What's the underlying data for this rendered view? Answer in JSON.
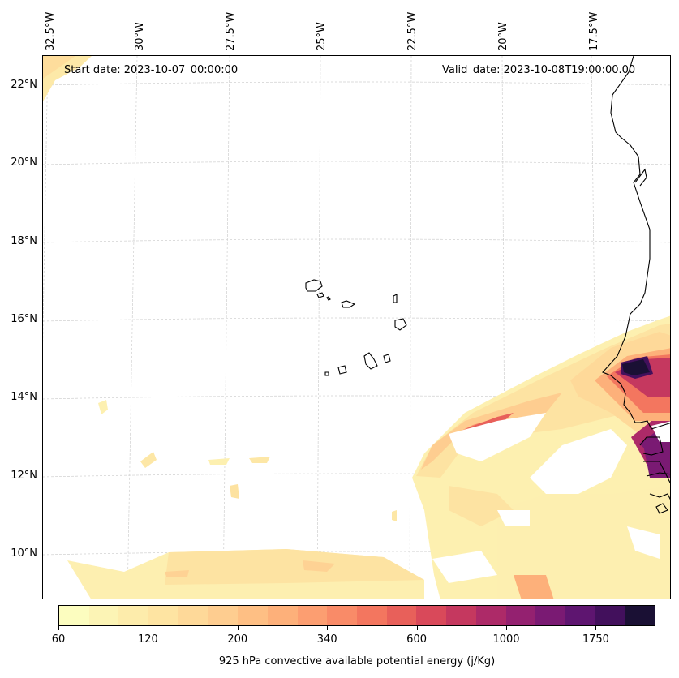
{
  "map": {
    "start_date": "Start date: 2023-10-07_00:00:00",
    "valid_date": "Valid_date: 2023-10-08T19:00:00.00",
    "lon_labels": [
      "32.5°W",
      "30°W",
      "27.5°W",
      "25°W",
      "22.5°W",
      "20°W",
      "17.5°W"
    ],
    "lat_labels": [
      "22°N",
      "20°N",
      "18°N",
      "16°N",
      "14°N",
      "12°N",
      "10°N"
    ],
    "gridlines": true,
    "coastline_color": "#000000"
  },
  "colorbar": {
    "label": "925 hPa convective available potential energy (j/Kg)",
    "ticks": [
      "60",
      "120",
      "200",
      "340",
      "600",
      "1000",
      "1750"
    ],
    "colors": [
      "#fcfdbf",
      "#fcf4b5",
      "#fdecab",
      "#fee4a2",
      "#fed999",
      "#fecd90",
      "#febf84",
      "#fdb07a",
      "#fc9e71",
      "#f98b68",
      "#f3765f",
      "#e8605a",
      "#d9495a",
      "#c5385f",
      "#ad2a68",
      "#942170",
      "#7a1a73",
      "#5e1570",
      "#42105c",
      "#1a1034"
    ]
  }
}
